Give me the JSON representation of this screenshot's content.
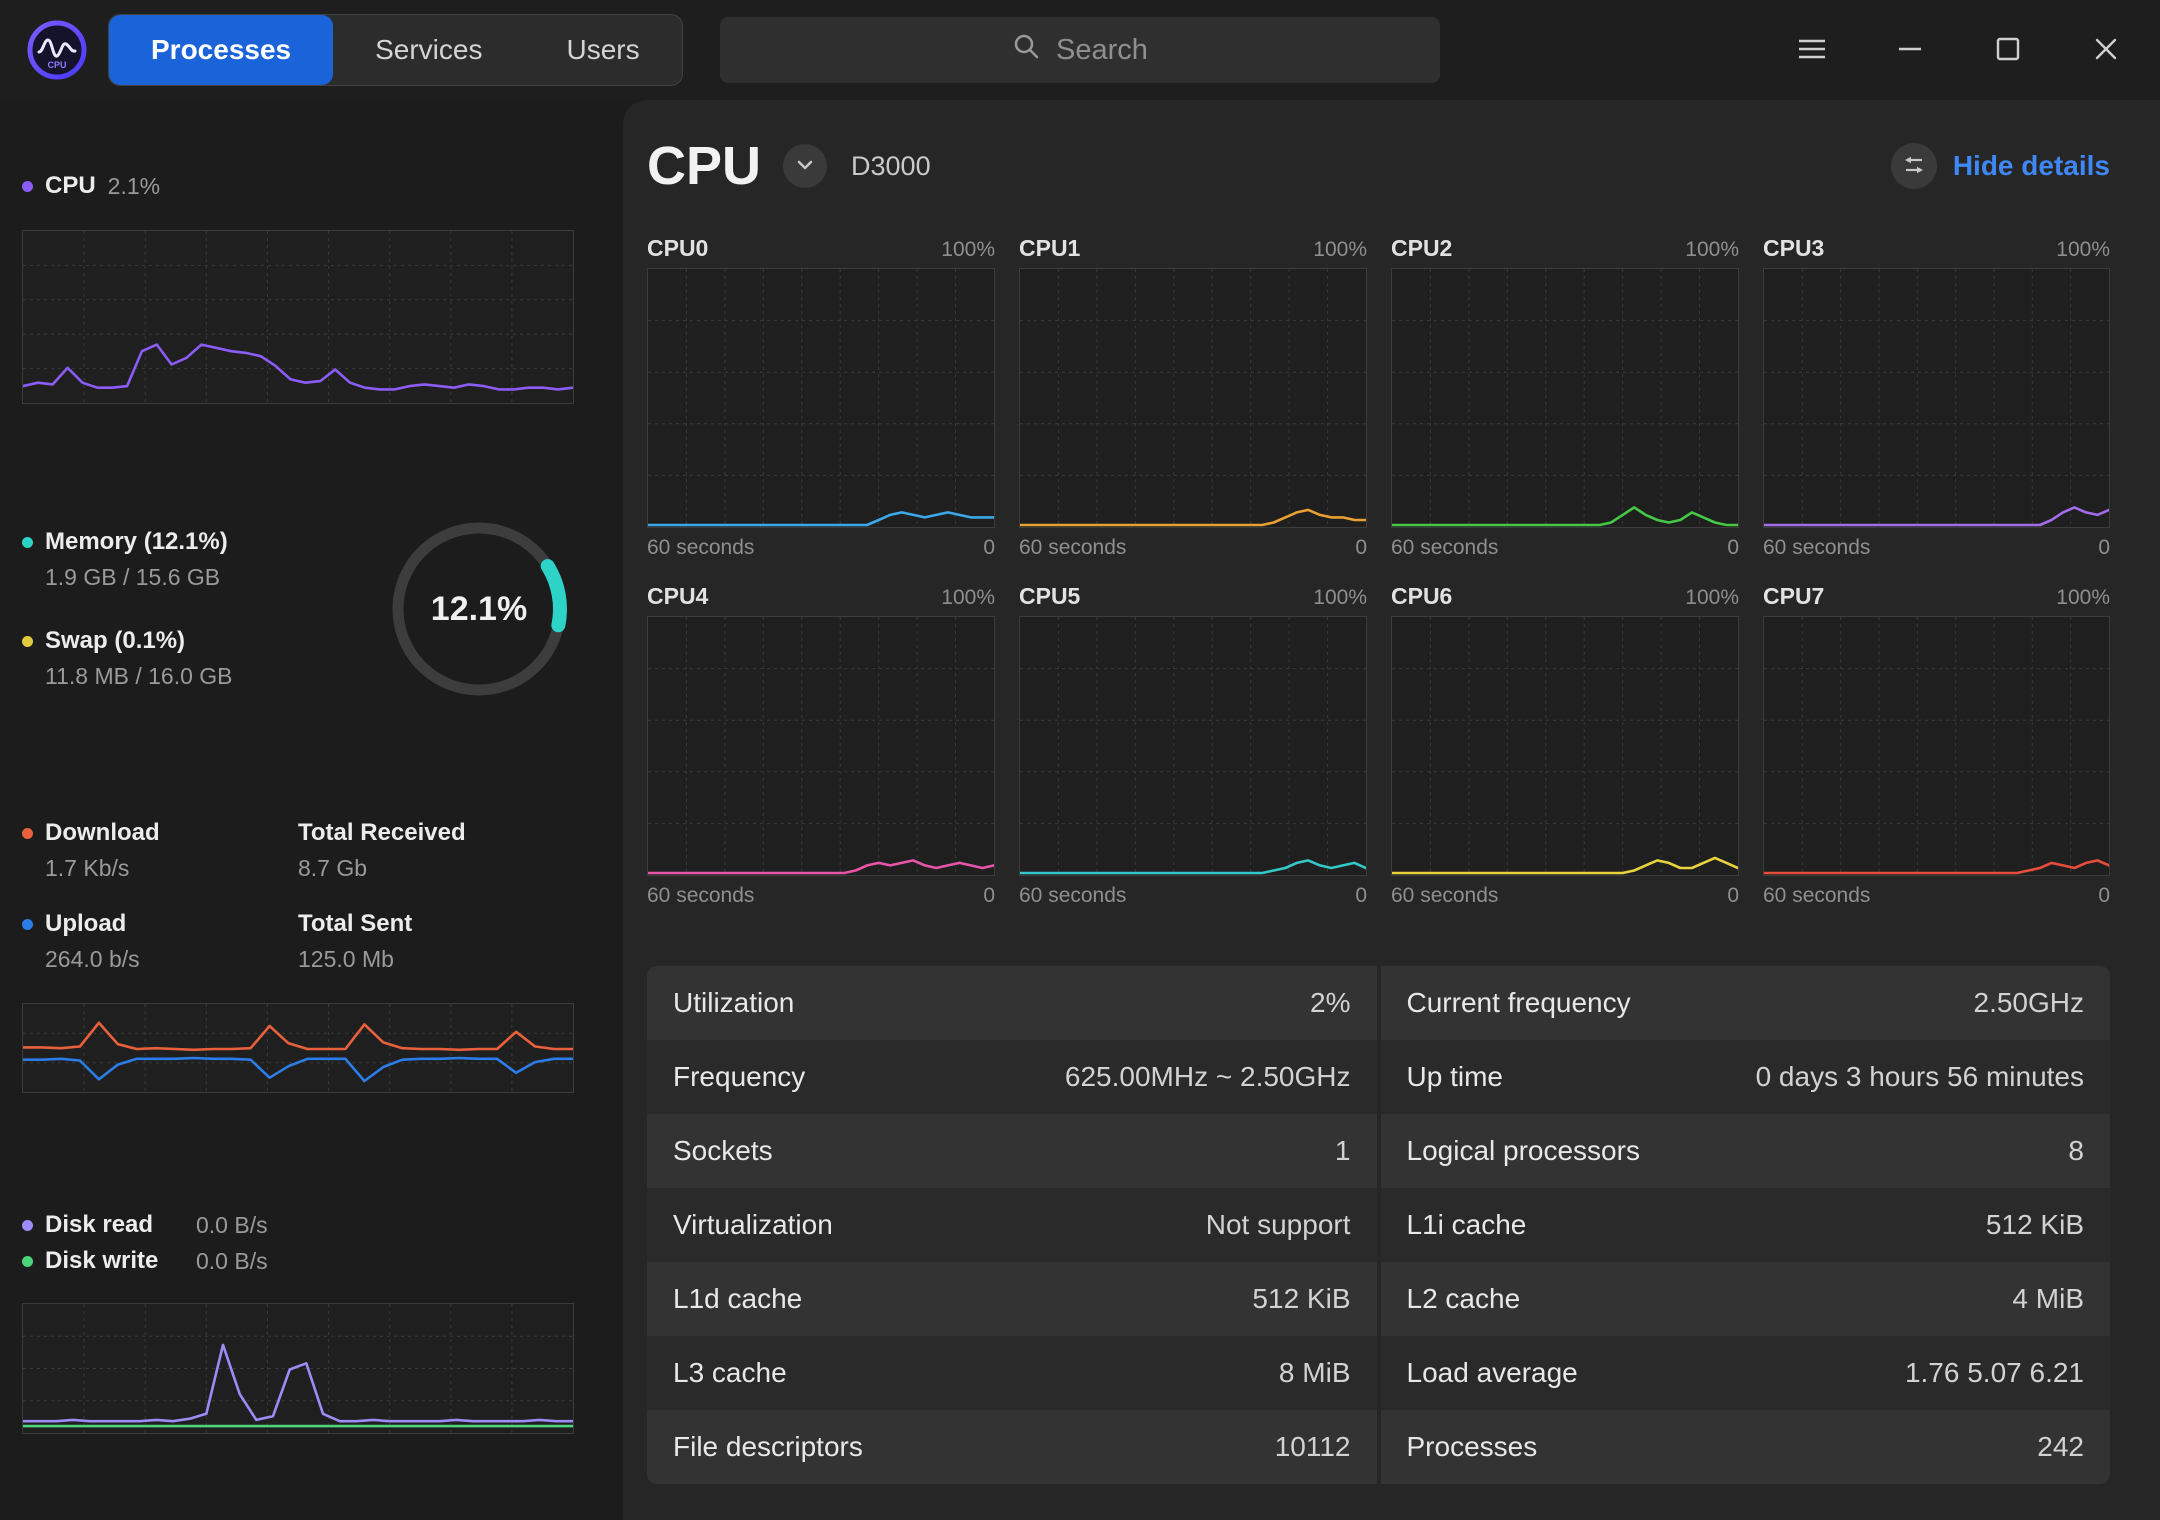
{
  "titlebar": {
    "tabs": [
      {
        "label": "Processes",
        "active": true
      },
      {
        "label": "Services",
        "active": false
      },
      {
        "label": "Users",
        "active": false
      }
    ],
    "search": {
      "placeholder": "Search"
    }
  },
  "sidebar": {
    "cpu": {
      "label": "CPU",
      "value": "2.1%",
      "dot_color": "#8b5cf6"
    },
    "memory": {
      "label": "Memory (12.1%)",
      "value": "1.9 GB / 15.6 GB",
      "dot_color": "#2ed3c8"
    },
    "swap": {
      "label": "Swap (0.1%)",
      "value": "11.8 MB / 16.0 GB",
      "dot_color": "#e3c93e"
    },
    "memory_donut": {
      "percent": 12.1,
      "text": "12.1%",
      "arc_color": "#2ed3c8",
      "ring_color": "#3d3d3d"
    },
    "download": {
      "label": "Download",
      "value": "1.7 Kb/s",
      "dot_color": "#e8613c"
    },
    "total_received": {
      "label": "Total Received",
      "value": "8.7 Gb"
    },
    "upload": {
      "label": "Upload",
      "value": "264.0 b/s",
      "dot_color": "#2b7de8"
    },
    "total_sent": {
      "label": "Total Sent",
      "value": "125.0 Mb"
    },
    "disk_read": {
      "label": "Disk read",
      "value": "0.0 B/s",
      "dot_color": "#9b8cf8"
    },
    "disk_write": {
      "label": "Disk write",
      "value": "0.0 B/s",
      "dot_color": "#4bd47b"
    }
  },
  "main": {
    "title": "CPU",
    "device": "D3000",
    "hide_details_label": "Hide details",
    "core_axis": {
      "max_label": "100%",
      "x_label": "60 seconds",
      "min_label": "0"
    },
    "cores": [
      {
        "name": "CPU0",
        "color": "#3ba8e8",
        "values": [
          0,
          0,
          0,
          0,
          0,
          0,
          0,
          0,
          0,
          0,
          0,
          0,
          0,
          0,
          0,
          0,
          0,
          0,
          0,
          0,
          2,
          4,
          5,
          4,
          3,
          4,
          5,
          4,
          3,
          3,
          3
        ]
      },
      {
        "name": "CPU1",
        "color": "#e8a033",
        "values": [
          0,
          0,
          0,
          0,
          0,
          0,
          0,
          0,
          0,
          0,
          0,
          0,
          0,
          0,
          0,
          0,
          0,
          0,
          0,
          0,
          0,
          0,
          1,
          3,
          5,
          6,
          4,
          3,
          3,
          2,
          2
        ]
      },
      {
        "name": "CPU2",
        "color": "#45c845",
        "values": [
          0,
          0,
          0,
          0,
          0,
          0,
          0,
          0,
          0,
          0,
          0,
          0,
          0,
          0,
          0,
          0,
          0,
          0,
          0,
          1,
          4,
          7,
          4,
          2,
          1,
          2,
          5,
          3,
          1,
          0,
          0
        ]
      },
      {
        "name": "CPU3",
        "color": "#a36ce8",
        "values": [
          0,
          0,
          0,
          0,
          0,
          0,
          0,
          0,
          0,
          0,
          0,
          0,
          0,
          0,
          0,
          0,
          0,
          0,
          0,
          0,
          0,
          0,
          0,
          0,
          0,
          2,
          5,
          7,
          5,
          4,
          6
        ]
      },
      {
        "name": "CPU4",
        "color": "#e855a8",
        "values": [
          0,
          0,
          0,
          0,
          0,
          0,
          0,
          0,
          0,
          0,
          0,
          0,
          0,
          0,
          0,
          0,
          0,
          0,
          1,
          3,
          4,
          3,
          4,
          5,
          3,
          2,
          3,
          4,
          3,
          2,
          3
        ]
      },
      {
        "name": "CPU5",
        "color": "#35c8c8",
        "values": [
          0,
          0,
          0,
          0,
          0,
          0,
          0,
          0,
          0,
          0,
          0,
          0,
          0,
          0,
          0,
          0,
          0,
          0,
          0,
          0,
          0,
          0,
          1,
          2,
          4,
          5,
          3,
          2,
          3,
          4,
          2
        ]
      },
      {
        "name": "CPU6",
        "color": "#e8d43c",
        "values": [
          0,
          0,
          0,
          0,
          0,
          0,
          0,
          0,
          0,
          0,
          0,
          0,
          0,
          0,
          0,
          0,
          0,
          0,
          0,
          0,
          0,
          1,
          3,
          5,
          4,
          2,
          2,
          4,
          6,
          4,
          2
        ]
      },
      {
        "name": "CPU7",
        "color": "#e84c3c",
        "values": [
          0,
          0,
          0,
          0,
          0,
          0,
          0,
          0,
          0,
          0,
          0,
          0,
          0,
          0,
          0,
          0,
          0,
          0,
          0,
          0,
          0,
          0,
          0,
          1,
          2,
          4,
          3,
          2,
          4,
          5,
          3
        ]
      }
    ]
  },
  "details": {
    "left": [
      {
        "label": "Utilization",
        "value": "2%"
      },
      {
        "label": "Frequency",
        "value": "625.00MHz ~ 2.50GHz"
      },
      {
        "label": "Sockets",
        "value": "1"
      },
      {
        "label": "Virtualization",
        "value": "Not support"
      },
      {
        "label": "L1d cache",
        "value": "512 KiB"
      },
      {
        "label": "L3 cache",
        "value": "8 MiB"
      },
      {
        "label": "File descriptors",
        "value": "10112"
      }
    ],
    "right": [
      {
        "label": "Current frequency",
        "value": "2.50GHz"
      },
      {
        "label": "Up time",
        "value": "0 days 3 hours 56 minutes"
      },
      {
        "label": "Logical processors",
        "value": "8"
      },
      {
        "label": "L1i cache",
        "value": "512 KiB"
      },
      {
        "label": "L2 cache",
        "value": "4 MiB"
      },
      {
        "label": "Load average",
        "value": "1.76 5.07 6.21"
      },
      {
        "label": "Processes",
        "value": "242"
      }
    ]
  },
  "charts": {
    "cpu_history": {
      "grid": {
        "cols": 9,
        "rows": 5
      },
      "series": [
        {
          "name": "cpu",
          "color": "#8b5cf6",
          "values": [
            9,
            11,
            10,
            20,
            11,
            8,
            8,
            9,
            30,
            34,
            22,
            26,
            34,
            32,
            30,
            29,
            27,
            21,
            13,
            11,
            12,
            19,
            11,
            8,
            7,
            7,
            9,
            10,
            9,
            8,
            10,
            9,
            7,
            7,
            8,
            8,
            7,
            8
          ]
        }
      ]
    },
    "network_history": {
      "grid": {
        "cols": 9,
        "rows": 3
      },
      "series": [
        {
          "name": "download",
          "color": "#e8613c",
          "values": [
            52,
            52,
            51,
            53,
            82,
            56,
            50,
            51,
            50,
            49,
            50,
            50,
            51,
            78,
            57,
            50,
            50,
            50,
            80,
            58,
            51,
            50,
            50,
            49,
            50,
            50,
            71,
            53,
            50,
            50
          ]
        },
        {
          "name": "upload",
          "color": "#2b7de8",
          "values": [
            37,
            37,
            38,
            36,
            13,
            31,
            38,
            38,
            38,
            39,
            38,
            38,
            37,
            15,
            29,
            38,
            38,
            38,
            11,
            28,
            37,
            38,
            38,
            39,
            38,
            38,
            21,
            34,
            38,
            38
          ]
        }
      ]
    },
    "disk_history": {
      "grid": {
        "cols": 9,
        "rows": 4
      },
      "series": [
        {
          "name": "read",
          "color": "#9b8cf8",
          "values": [
            8,
            8,
            8,
            9,
            8,
            8,
            8,
            8,
            9,
            8,
            10,
            14,
            70,
            30,
            9,
            12,
            50,
            55,
            14,
            8,
            8,
            9,
            8,
            8,
            8,
            8,
            9,
            8,
            8,
            8,
            8,
            9,
            8,
            8
          ]
        },
        {
          "name": "write",
          "color": "#4bd47b",
          "values": [
            4,
            4,
            4,
            4,
            4,
            4,
            4,
            4,
            4,
            4,
            4,
            4,
            4,
            4,
            4,
            4,
            4,
            4,
            4,
            4,
            4,
            4,
            4,
            4,
            4,
            4,
            4,
            4,
            4,
            4,
            4,
            4,
            4,
            4
          ]
        }
      ]
    }
  }
}
